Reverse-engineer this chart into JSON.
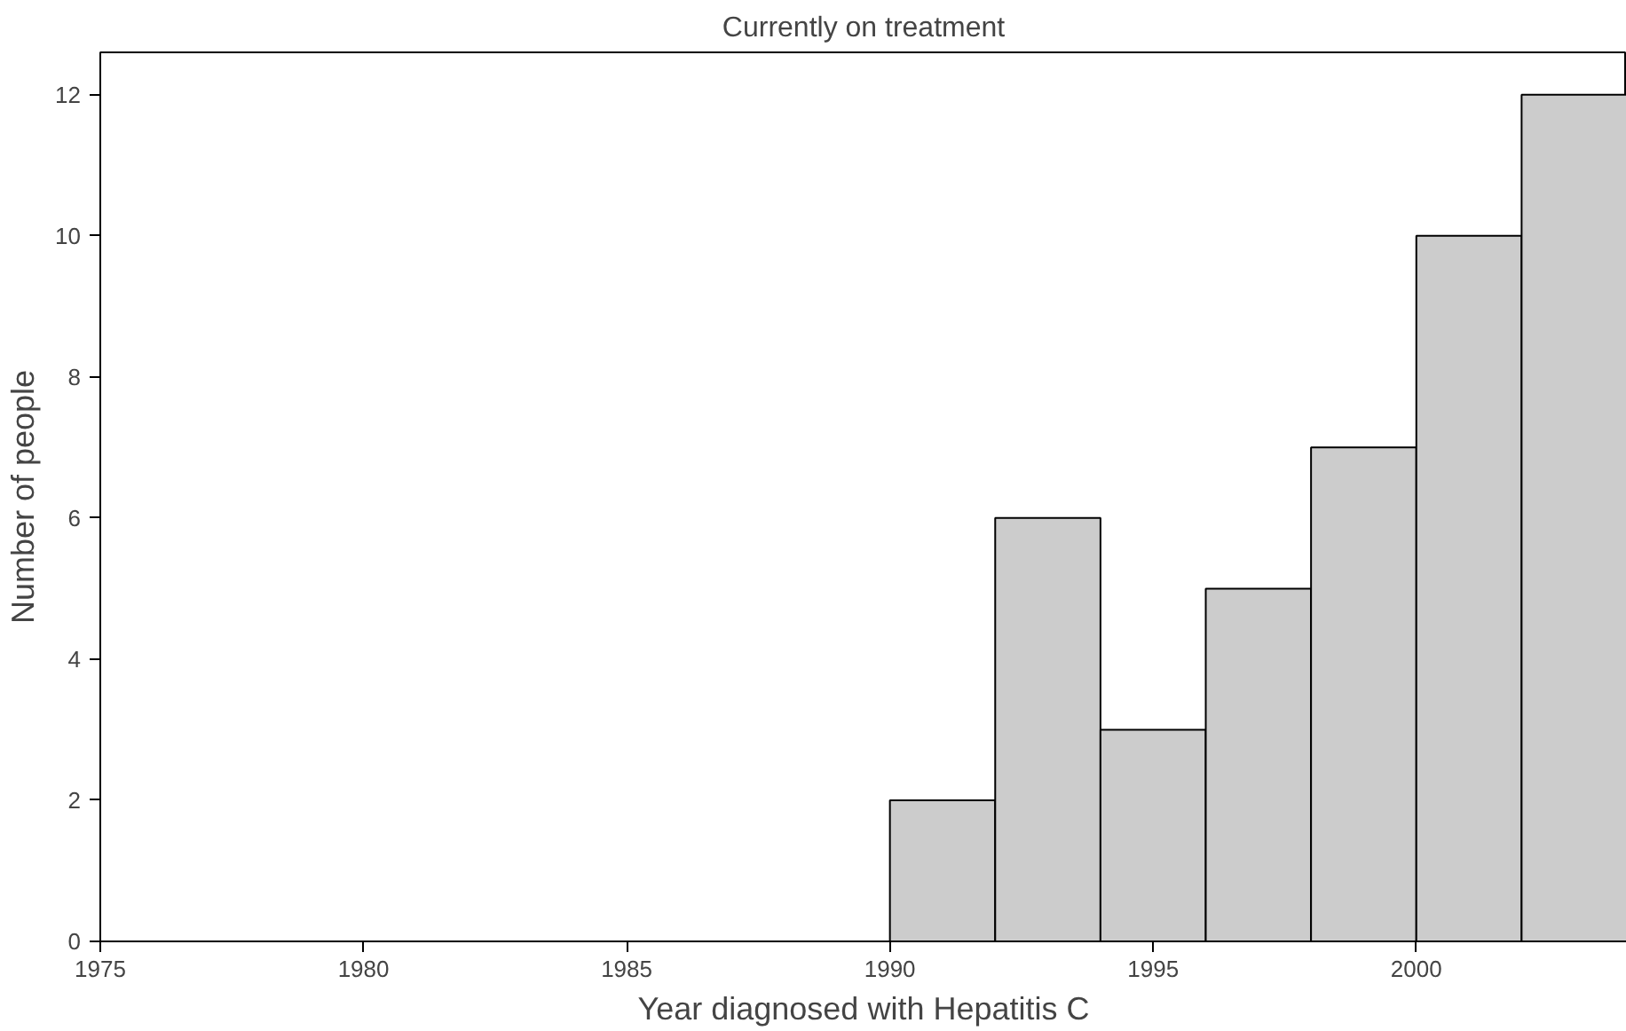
{
  "chart_data": {
    "type": "histogram",
    "title": "Currently on treatment",
    "xlabel": "Year diagnosed with Hepatitis C",
    "ylabel": "Number of people",
    "bins": [
      1990,
      1992,
      1994,
      1996,
      1998,
      2000,
      2002,
      2004
    ],
    "values": [
      2,
      6,
      3,
      5,
      7,
      10,
      12
    ],
    "color": "#cccccc",
    "xlim": [
      1975,
      2004
    ],
    "ylim": [
      0,
      12.6
    ],
    "xticks": [
      1975,
      1980,
      1985,
      1990,
      1995,
      2000
    ],
    "yticks": [
      0,
      2,
      4,
      6,
      8,
      10,
      12
    ],
    "grid": false
  }
}
